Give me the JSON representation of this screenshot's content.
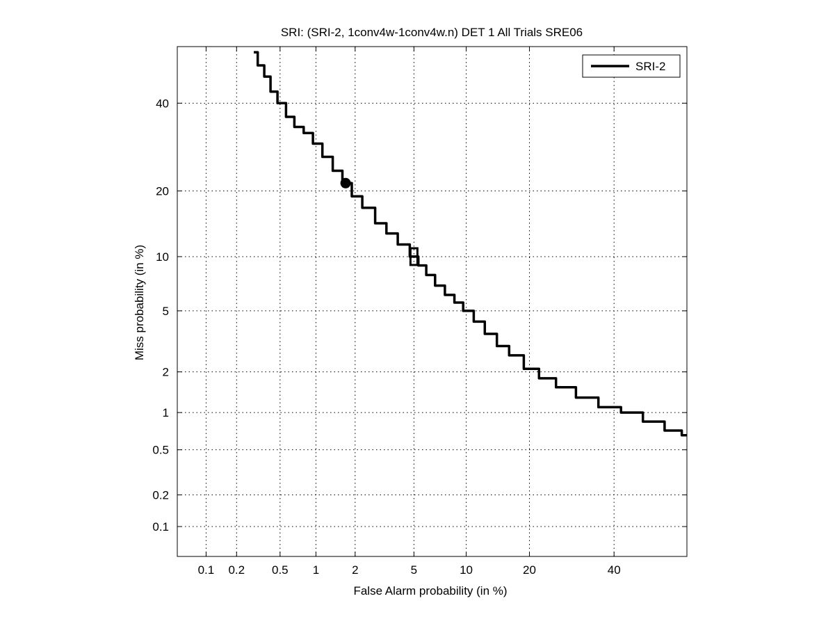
{
  "chart_data": {
    "type": "line",
    "title": "SRI: (SRI-2, 1conv4w-1conv4w.n) DET 1 All Trials SRE06",
    "xlabel": "False Alarm probability (in %)",
    "ylabel": "Miss probability (in %)",
    "x_scale": "normal-deviate (probit)",
    "y_scale": "normal-deviate (probit)",
    "xlim": [
      0.05,
      60
    ],
    "ylim": [
      0.05,
      55
    ],
    "x_ticks": [
      0.1,
      0.2,
      0.5,
      1,
      2,
      5,
      10,
      20,
      40
    ],
    "x_tick_labels": [
      "0.1",
      "0.2",
      "0.5",
      "1",
      "2",
      "5",
      "10",
      "20",
      "40"
    ],
    "y_ticks": [
      0.1,
      0.2,
      0.5,
      1,
      2,
      5,
      10,
      20,
      40
    ],
    "y_tick_labels": [
      "0.1",
      "0.2",
      "0.5",
      "1",
      "2",
      "5",
      "10",
      "20",
      "40"
    ],
    "grid": true,
    "legend_position": "top-right",
    "series": [
      {
        "name": "SRI-2",
        "color": "#000000",
        "x": [
          0.29,
          0.33,
          0.38,
          0.43,
          0.5,
          0.6,
          0.7,
          0.85,
          1.0,
          1.2,
          1.45,
          1.7,
          2.0,
          2.4,
          3.0,
          3.5,
          4.2,
          5.0,
          5.5,
          6.2,
          7.0,
          8.0,
          9.0,
          10.0,
          11.5,
          13.0,
          15.0,
          17.0,
          20.0,
          23.0,
          27.0,
          32.0,
          38.0,
          44.0,
          50.0,
          56.0,
          60.0
        ],
        "y": [
          53.5,
          50.0,
          47.0,
          43.0,
          40.0,
          36.5,
          34.0,
          32.5,
          30.0,
          27.0,
          24.0,
          21.5,
          19.0,
          17.0,
          14.5,
          13.0,
          11.5,
          10.0,
          9.0,
          8.0,
          7.0,
          6.2,
          5.6,
          5.0,
          4.3,
          3.6,
          3.0,
          2.6,
          2.1,
          1.8,
          1.55,
          1.3,
          1.1,
          1.0,
          0.85,
          0.72,
          0.66
        ]
      }
    ],
    "markers": [
      {
        "shape": "circle",
        "x": 1.7,
        "y": 21.5
      },
      {
        "shape": "square",
        "x": 5.0,
        "y": 10.0
      }
    ]
  }
}
